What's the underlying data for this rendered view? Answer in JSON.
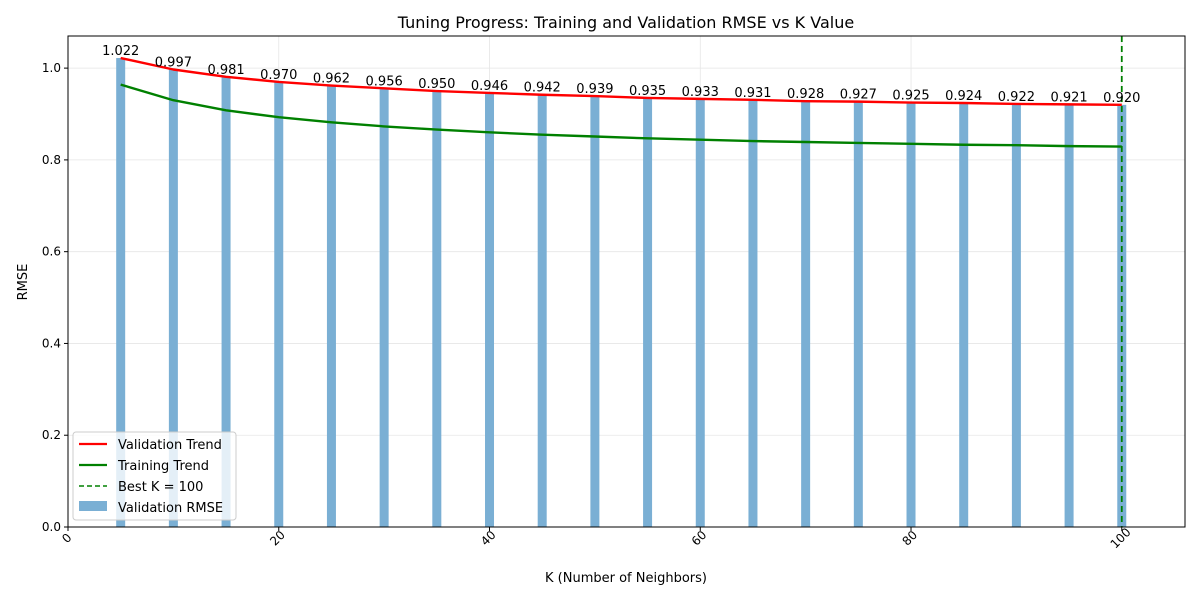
{
  "chart_data": {
    "type": "bar",
    "title": "Tuning Progress: Training and Validation RMSE vs K Value",
    "xlabel": "K (Number of Neighbors)",
    "ylabel": "RMSE",
    "xlim": [
      0,
      106
    ],
    "ylim": [
      0,
      1.07
    ],
    "xticks": [
      0,
      20,
      40,
      60,
      80,
      100
    ],
    "yticks": [
      "0.0",
      "0.2",
      "0.4",
      "0.6",
      "0.8",
      "1.0"
    ],
    "grid": true,
    "legend_position": "lower-left",
    "x": [
      5,
      10,
      15,
      20,
      25,
      30,
      35,
      40,
      45,
      50,
      55,
      60,
      65,
      70,
      75,
      80,
      85,
      90,
      95,
      100
    ],
    "series": [
      {
        "name": "Validation RMSE",
        "kind": "bar",
        "color": "#7aafd4",
        "values": [
          1.022,
          0.997,
          0.981,
          0.97,
          0.962,
          0.956,
          0.95,
          0.946,
          0.942,
          0.939,
          0.935,
          0.933,
          0.931,
          0.928,
          0.927,
          0.925,
          0.924,
          0.922,
          0.921,
          0.92
        ],
        "labels": [
          "1.022",
          "0.997",
          "0.981",
          "0.970",
          "0.962",
          "0.956",
          "0.950",
          "0.946",
          "0.942",
          "0.939",
          "0.935",
          "0.933",
          "0.931",
          "0.928",
          "0.927",
          "0.925",
          "0.924",
          "0.922",
          "0.921",
          "0.920"
        ]
      },
      {
        "name": "Validation Trend",
        "kind": "line",
        "color": "#ff0000",
        "values": [
          1.022,
          0.997,
          0.981,
          0.97,
          0.962,
          0.956,
          0.95,
          0.946,
          0.942,
          0.939,
          0.935,
          0.933,
          0.931,
          0.928,
          0.927,
          0.925,
          0.924,
          0.922,
          0.921,
          0.92
        ]
      },
      {
        "name": "Training Trend",
        "kind": "line",
        "color": "#008000",
        "values": [
          0.964,
          0.93,
          0.908,
          0.893,
          0.882,
          0.873,
          0.866,
          0.86,
          0.855,
          0.851,
          0.847,
          0.844,
          0.841,
          0.839,
          0.837,
          0.835,
          0.833,
          0.832,
          0.83,
          0.829
        ]
      }
    ],
    "best_k": {
      "value": 100,
      "label": "Best K = 100",
      "color": "#008000"
    }
  }
}
